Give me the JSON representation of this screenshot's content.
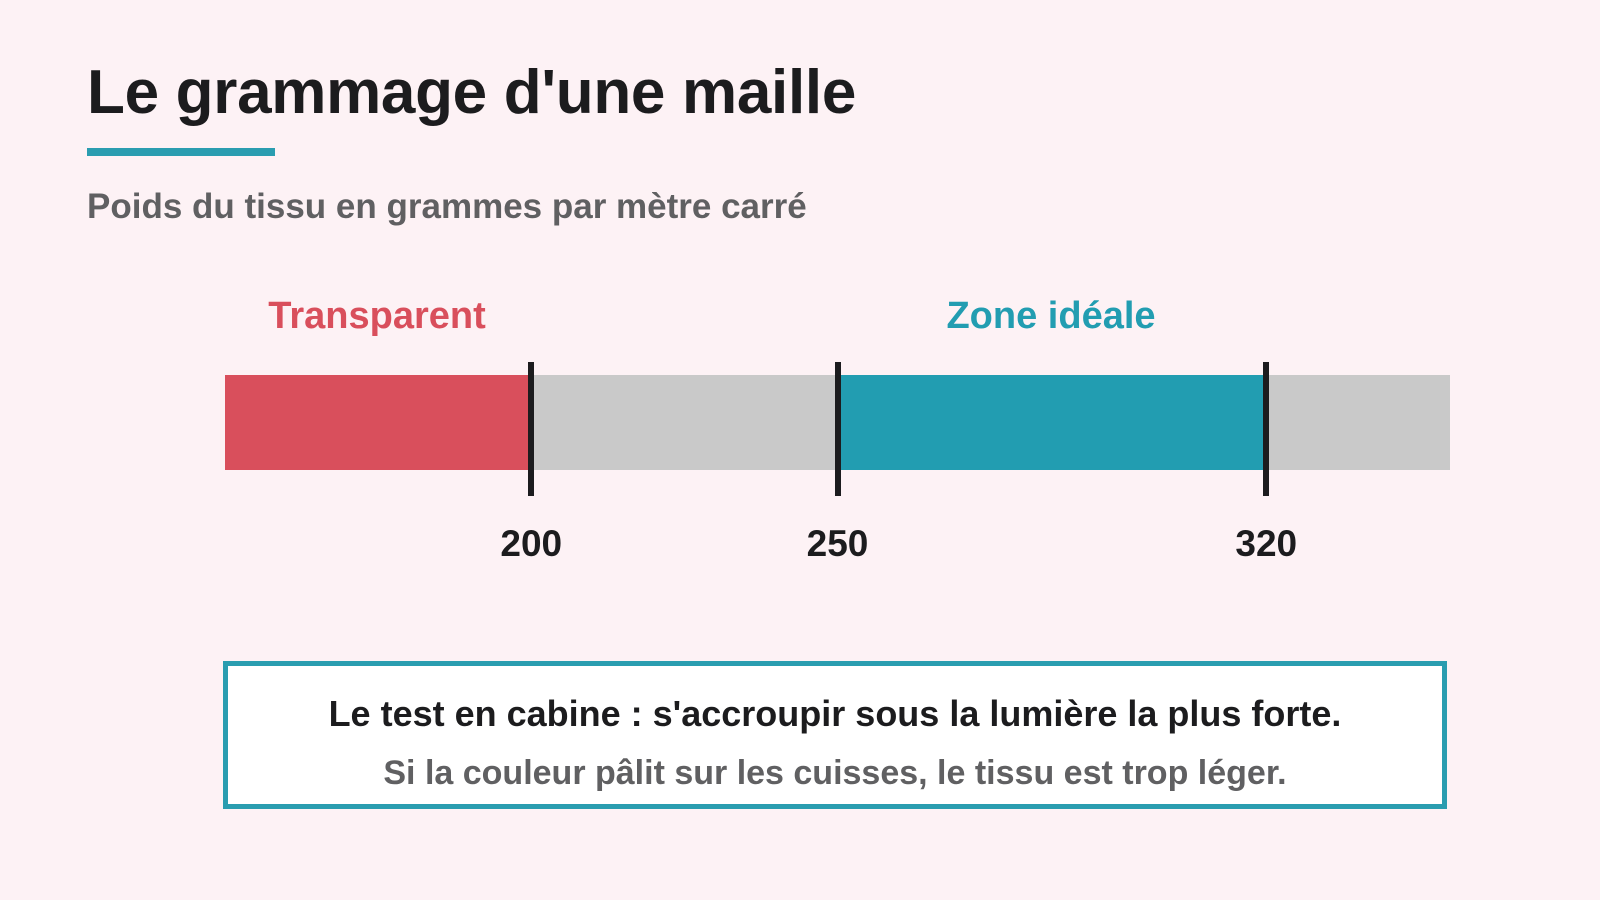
{
  "title": "Le grammage d'une maille",
  "subtitle": "Poids du tissu en grammes par mètre carré",
  "colors": {
    "background": "#fdf2f5",
    "accent": "#2a9db0",
    "transparent_zone": "#d94f5c",
    "ideal_zone": "#229db1",
    "track": "#c9c9c9",
    "text": "#1c1c1e",
    "muted_text": "#606062"
  },
  "scale": {
    "domain": [
      150,
      350
    ],
    "zones": [
      {
        "label": "Transparent",
        "from": 150,
        "to": 200,
        "color": "#d94f5c"
      },
      {
        "label": "Zone idéale",
        "from": 250,
        "to": 320,
        "color": "#229db1"
      }
    ],
    "ticks": [
      {
        "value": 200,
        "label": "200"
      },
      {
        "value": 250,
        "label": "250"
      },
      {
        "value": 320,
        "label": "320"
      }
    ]
  },
  "note": {
    "main": "Le test en cabine : s'accroupir sous la lumière la plus forte.",
    "sub": "Si la couleur pâlit sur les cuisses, le tissu est trop léger."
  }
}
